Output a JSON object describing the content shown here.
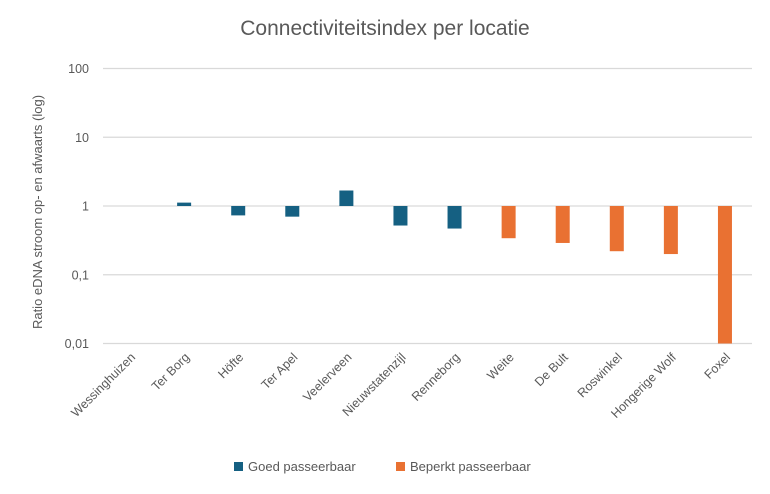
{
  "chart_data": {
    "type": "bar",
    "title": "Connectiviteitsindex per locatie",
    "xlabel": "",
    "ylabel": "Ratio eDNA stroom op- en afwaarts (log)",
    "yscale": "log",
    "ylim": [
      0.01,
      100
    ],
    "baseline": 1,
    "yticks": [
      {
        "value": 100,
        "label": "100"
      },
      {
        "value": 10,
        "label": "10"
      },
      {
        "value": 1,
        "label": "1"
      },
      {
        "value": 0.1,
        "label": "0,1"
      },
      {
        "value": 0.01,
        "label": "0,01"
      }
    ],
    "grid": true,
    "legend_position": "bottom",
    "categories": [
      "Wessinghuizen",
      "Ter Borg",
      "Höfte",
      "Ter Apel",
      "Veelerveen",
      "Nieuwstatenzijl",
      "Renneborg",
      "Weite",
      "De Bult",
      "Roswinkel",
      "Hongerige Wolf",
      "Foxel"
    ],
    "series": [
      {
        "name": "Goed passeerbaar",
        "color": "#156082",
        "values": [
          1.0,
          1.12,
          0.73,
          0.7,
          1.68,
          0.52,
          0.47,
          null,
          null,
          null,
          null,
          null
        ]
      },
      {
        "name": "Beperkt passeerbaar",
        "color": "#E97132",
        "values": [
          null,
          null,
          null,
          null,
          null,
          null,
          null,
          0.34,
          0.29,
          0.22,
          0.2,
          0.01
        ]
      }
    ]
  }
}
